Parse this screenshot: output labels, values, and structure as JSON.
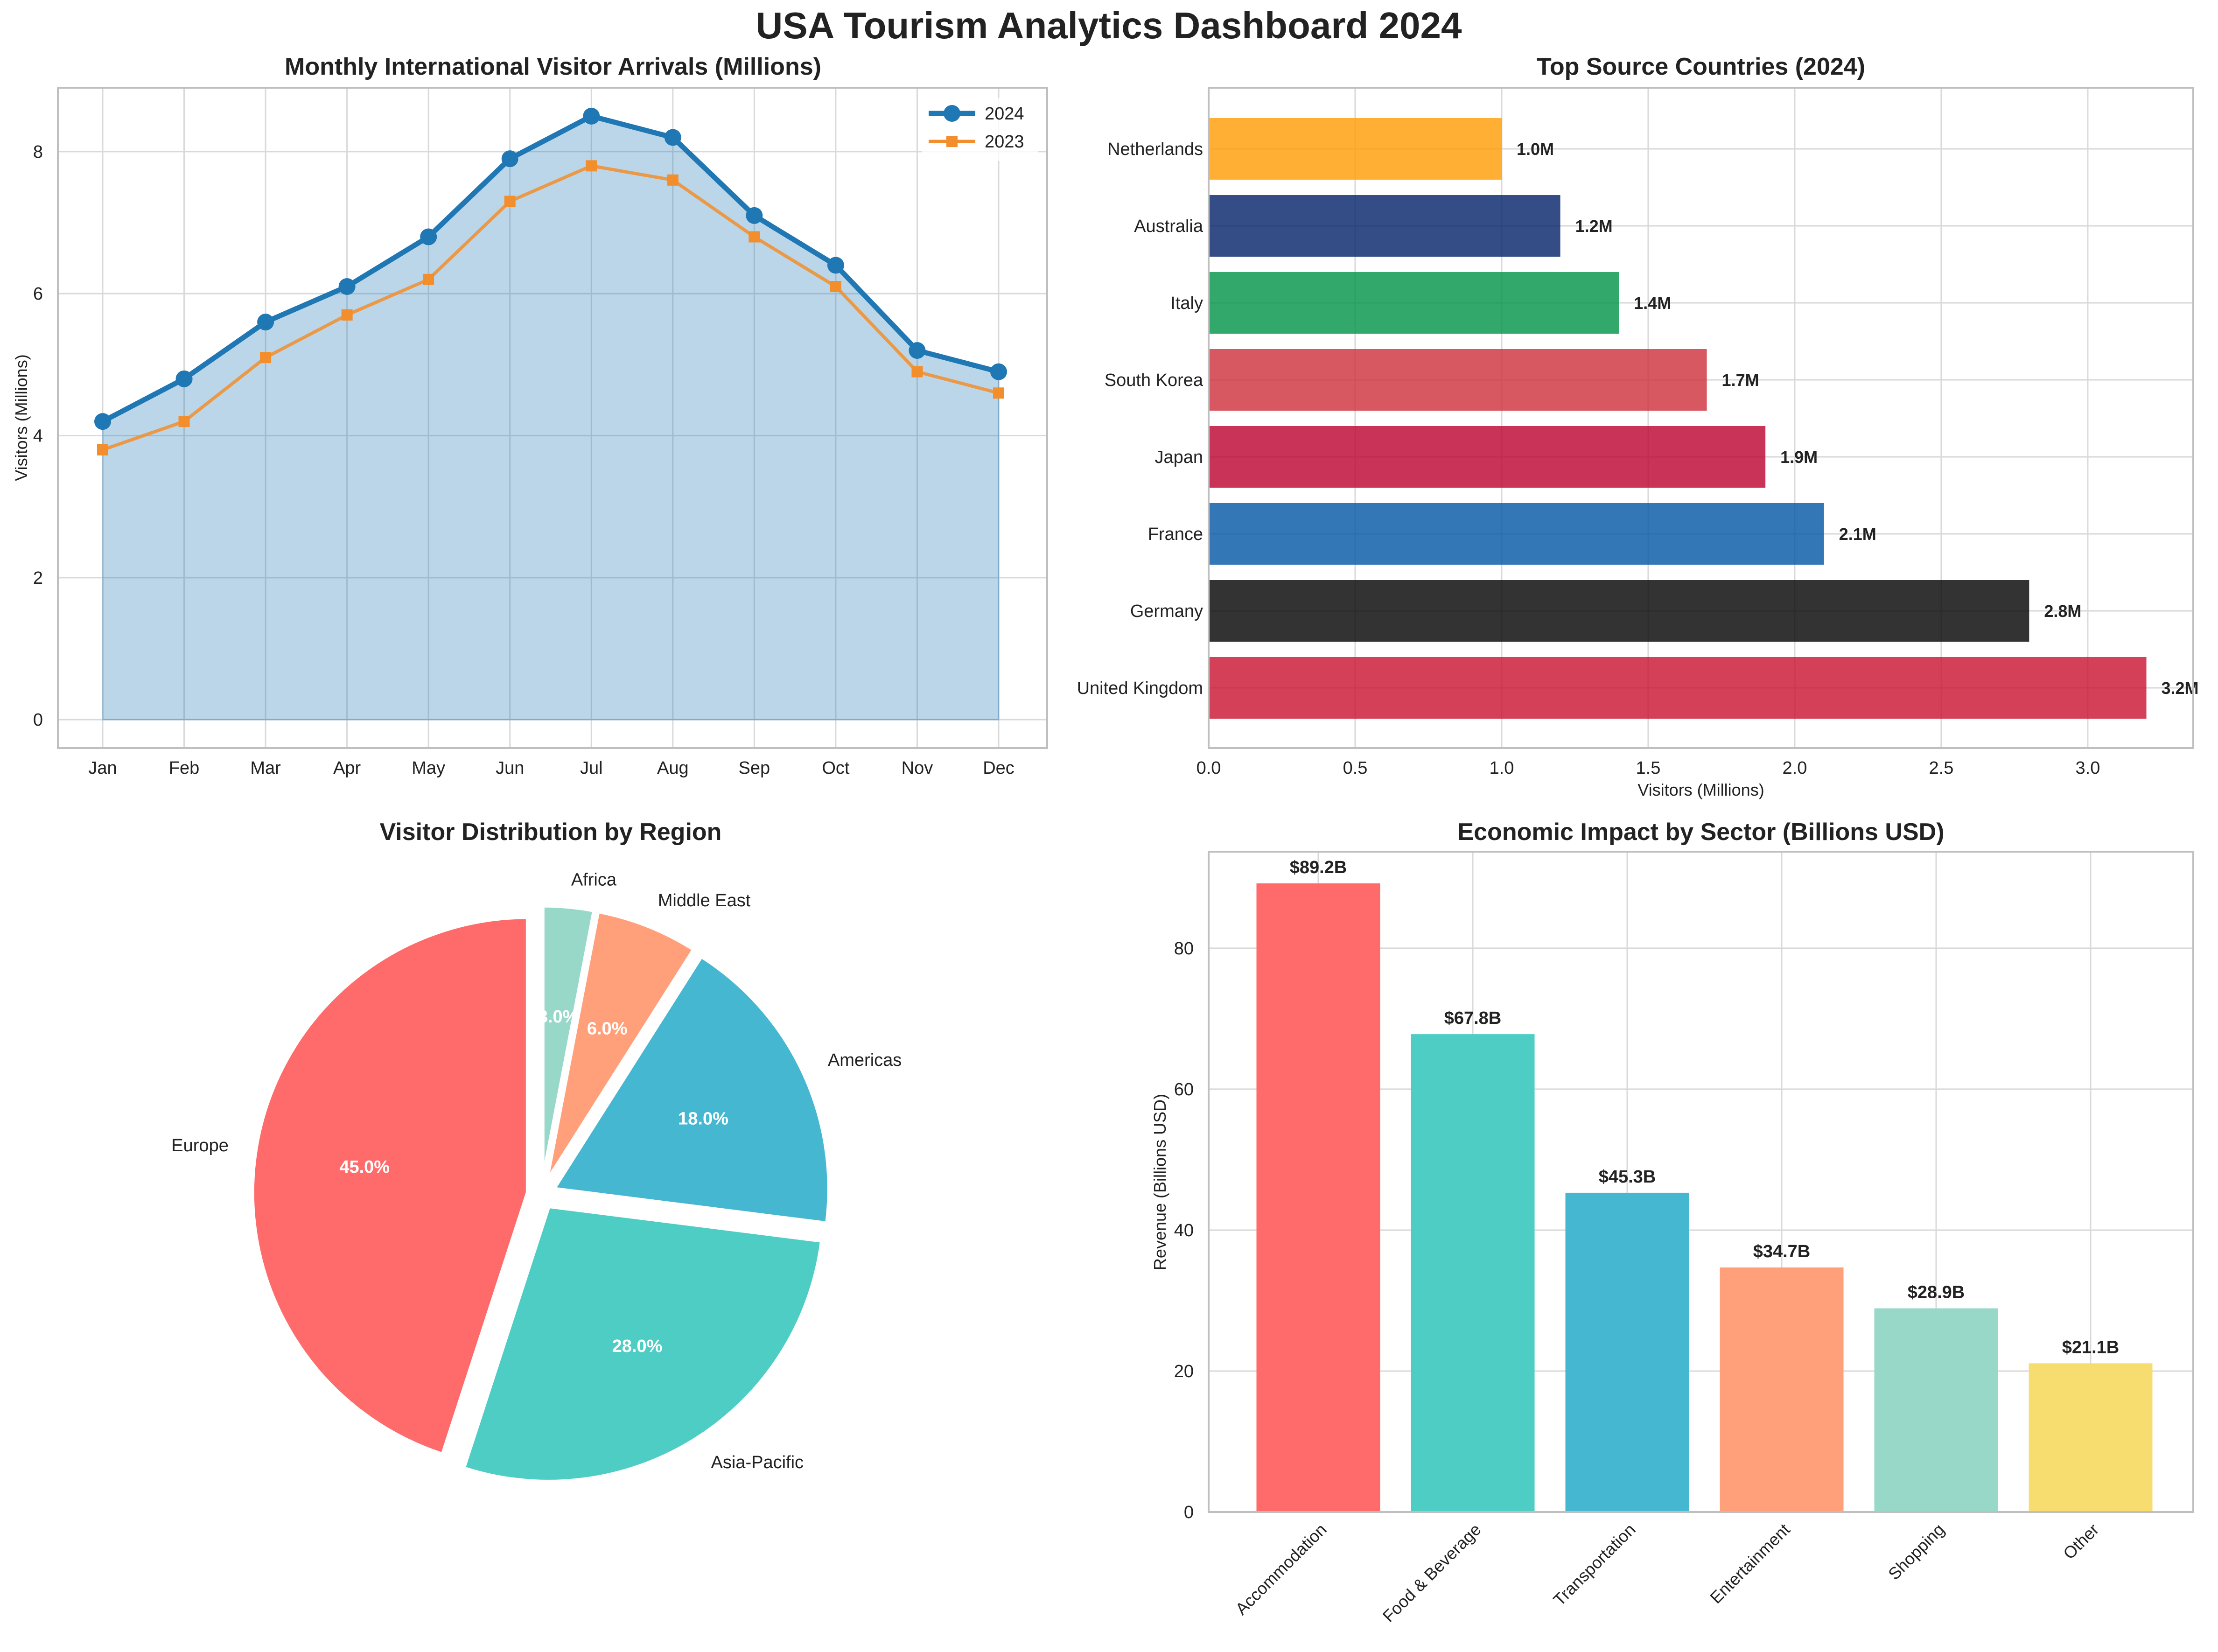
{
  "title": "USA Tourism Analytics Dashboard 2024",
  "chart_data": [
    {
      "type": "line",
      "title": "Monthly International Visitor Arrivals (Millions)",
      "xlabel": "",
      "ylabel": "Visitors (Millions)",
      "categories": [
        "Jan",
        "Feb",
        "Mar",
        "Apr",
        "May",
        "Jun",
        "Jul",
        "Aug",
        "Sep",
        "Oct",
        "Nov",
        "Dec"
      ],
      "series": [
        {
          "name": "2024",
          "values": [
            4.2,
            4.8,
            5.6,
            6.1,
            6.8,
            7.9,
            8.5,
            8.2,
            7.1,
            6.4,
            5.2,
            4.9
          ],
          "color": "#1f77b4",
          "marker": "circle",
          "fill_area": true
        },
        {
          "name": "2023",
          "values": [
            3.8,
            4.2,
            5.1,
            5.7,
            6.2,
            7.3,
            7.8,
            7.6,
            6.8,
            6.1,
            4.9,
            4.6
          ],
          "color": "#f28e2b",
          "marker": "square"
        }
      ],
      "ylim": [
        -0.4,
        8.9
      ],
      "yticks": [
        0,
        2,
        4,
        6,
        8
      ],
      "grid": true,
      "legend": "top-right"
    },
    {
      "type": "bar",
      "orientation": "horizontal",
      "title": "Top Source Countries (2024)",
      "xlabel": "Visitors (Millions)",
      "ylabel": "",
      "categories": [
        "United Kingdom",
        "Germany",
        "France",
        "Japan",
        "South Korea",
        "Italy",
        "Australia",
        "Netherlands"
      ],
      "values": [
        3.2,
        2.8,
        2.1,
        1.9,
        1.7,
        1.4,
        1.2,
        1.0
      ],
      "value_labels": [
        "3.2M",
        "2.8M",
        "2.1M",
        "1.9M",
        "1.7M",
        "1.4M",
        "1.2M",
        "1.0M"
      ],
      "colors": [
        "#c8102e",
        "#000000",
        "#0055a4",
        "#bc002d",
        "#cd2e3a",
        "#009246",
        "#012169",
        "#ff9b00"
      ],
      "xlim": [
        0,
        3.36
      ],
      "xticks": [
        0.0,
        0.5,
        1.0,
        1.5,
        2.0,
        2.5,
        3.0
      ],
      "xtick_labels": [
        "0.0",
        "0.5",
        "1.0",
        "1.5",
        "2.0",
        "2.5",
        "3.0"
      ],
      "grid": true
    },
    {
      "type": "pie",
      "title": "Visitor Distribution by Region",
      "labels": [
        "Europe",
        "Asia-Pacific",
        "Americas",
        "Middle East",
        "Africa"
      ],
      "values": [
        45.0,
        28.0,
        18.0,
        6.0,
        3.0
      ],
      "pct_labels": [
        "45.0%",
        "28.0%",
        "18.0%",
        "6.0%",
        "3.0%"
      ],
      "colors": [
        "#ff6b6b",
        "#4ecdc4",
        "#45b7d1",
        "#ffa07a",
        "#98d8c8"
      ],
      "start_angle": 90,
      "direction": "counterclockwise",
      "exploded": true
    },
    {
      "type": "bar",
      "title": "Economic Impact by Sector (Billions USD)",
      "xlabel": "",
      "ylabel": "Revenue (Billions USD)",
      "categories": [
        "Accommodation",
        "Food & Beverage",
        "Transportation",
        "Entertainment",
        "Shopping",
        "Other"
      ],
      "values": [
        89.2,
        67.8,
        45.3,
        34.7,
        28.9,
        21.1
      ],
      "value_labels": [
        "$89.2B",
        "$67.8B",
        "$45.3B",
        "$34.7B",
        "$28.9B",
        "$21.1B"
      ],
      "colors": [
        "#ff6b6b",
        "#4ecdc4",
        "#45b7d1",
        "#ffa07a",
        "#98d8c8",
        "#f7dc6f"
      ],
      "ylim": [
        0,
        93.7
      ],
      "yticks": [
        0,
        20,
        40,
        60,
        80
      ],
      "grid": true
    }
  ]
}
